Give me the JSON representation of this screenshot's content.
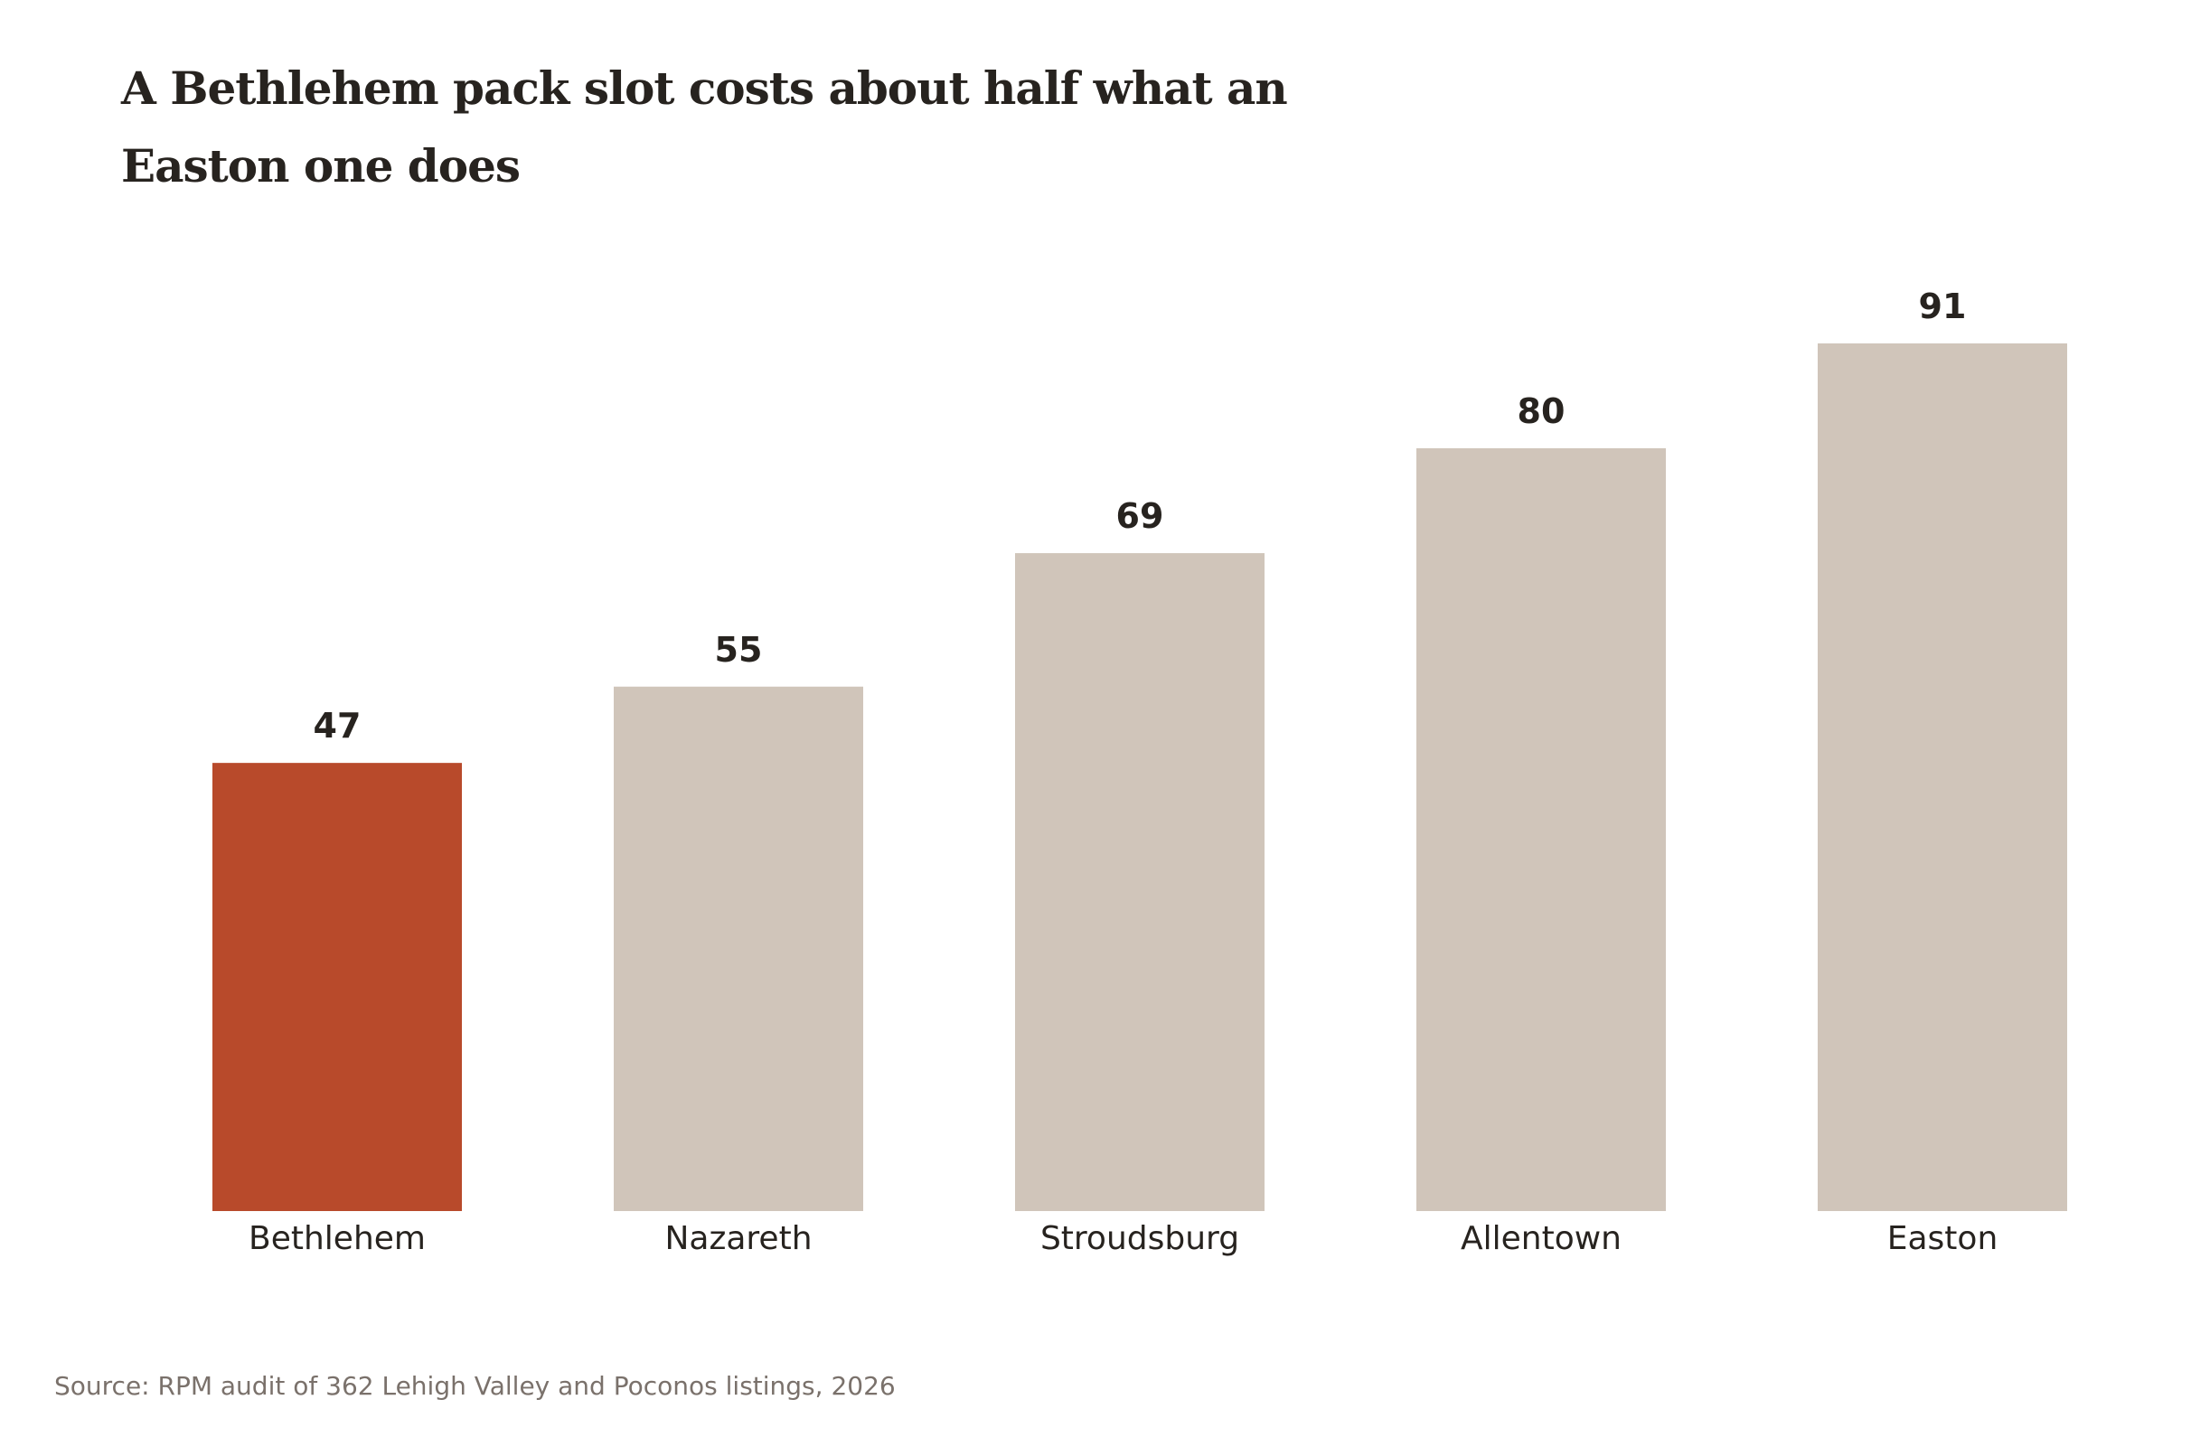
{
  "chart_data": {
    "type": "bar",
    "title_lines": [
      "A Bethlehem pack slot costs about half what an",
      "Easton one does"
    ],
    "categories": [
      "Bethlehem",
      "Nazareth",
      "Stroudsburg",
      "Allentown",
      "Easton"
    ],
    "values": [
      47,
      55,
      69,
      80,
      91
    ],
    "value_labels": [
      "47",
      "55",
      "69",
      "80",
      "91"
    ],
    "highlight_category": "Bethlehem",
    "colors": {
      "highlight": "#b84a2b",
      "default": "#d0c5ba",
      "text": "#27231f",
      "source": "#7a716b"
    },
    "xlabel": "",
    "ylabel": "",
    "ylim": [
      0,
      100
    ],
    "grid": false,
    "legend": "none",
    "source": "Source: RPM audit of 362 Lehigh Valley and Poconos listings, 2026"
  }
}
